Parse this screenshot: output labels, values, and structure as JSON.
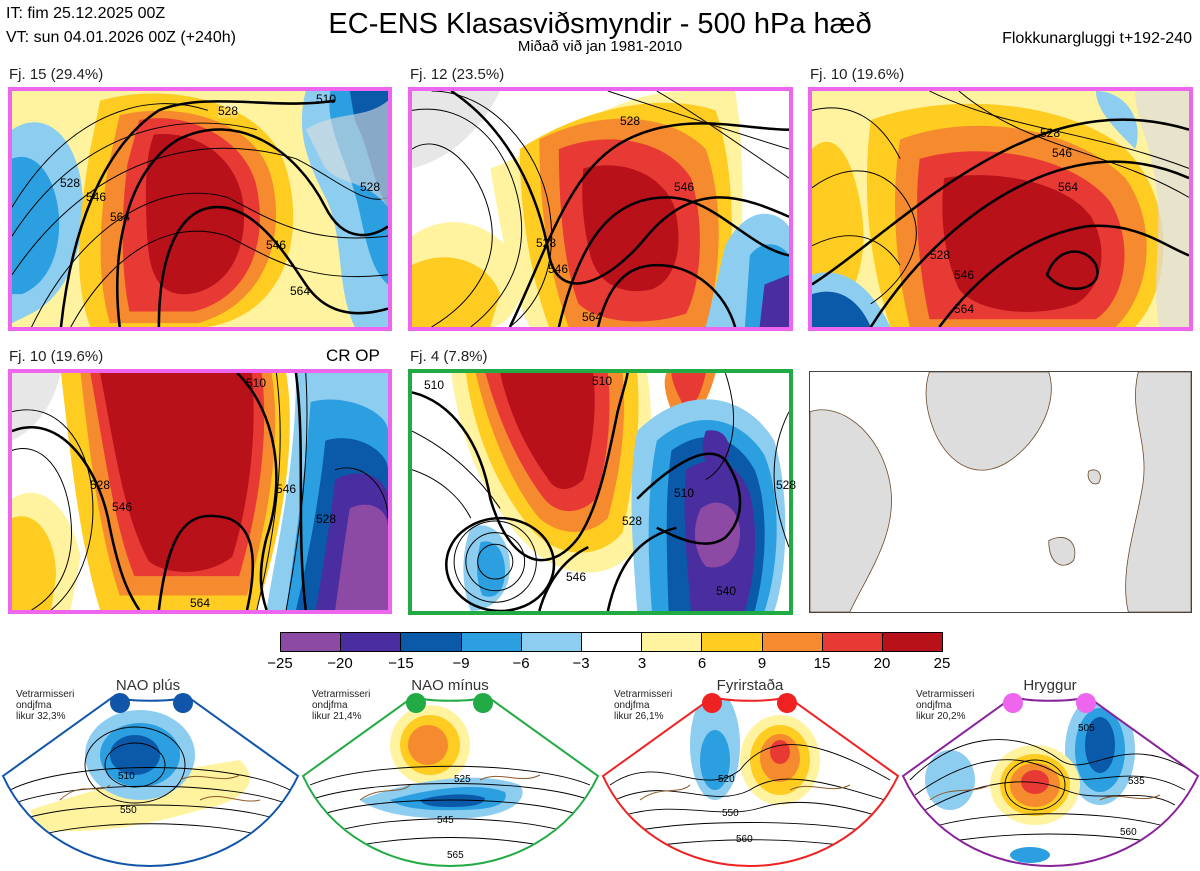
{
  "header": {
    "it_line": "IT: fim 25.12.2025 00Z",
    "vt_line": "VT: sun 04.01.2026 00Z  (+240h)",
    "title": "EC-ENS Klasasviðsmyndir - 500 hPa hæð",
    "subtitle": "Miðað við jan 1981-2010",
    "window": "Flokkunargluggi t+192-240"
  },
  "panels": [
    {
      "label": "Fj. 15 (29.4%)",
      "regime": "Hryggur",
      "frame_color": "#ee66ee",
      "contours": [
        "528",
        "546",
        "564",
        "528",
        "546",
        "564",
        "510",
        "528"
      ]
    },
    {
      "label": "Fj. 12 (23.5%)",
      "regime": "Hryggur",
      "frame_color": "#ee66ee",
      "contours": [
        "528",
        "546",
        "528",
        "546",
        "564"
      ]
    },
    {
      "label": "Fj. 10 (19.6%)",
      "regime": "Hryggur",
      "frame_color": "#ee66ee",
      "contours": [
        "528",
        "546",
        "564",
        "528",
        "546",
        "564"
      ]
    },
    {
      "label": "Fj. 10 (19.6%)",
      "regime": "Hryggur",
      "frame_color": "#ee66ee",
      "tag": "CR OP",
      "contours": [
        "510",
        "528",
        "546",
        "528",
        "546",
        "564"
      ]
    },
    {
      "label": "Fj. 4 (7.8%)",
      "regime": "NAO mínus",
      "frame_color": "#22aa44",
      "contours": [
        "510",
        "510",
        "528",
        "546",
        "510",
        "528",
        "540"
      ]
    }
  ],
  "chart_data": {
    "type": "heatmap",
    "title": "EC-ENS Klasasviðsmyndir - 500 hPa hæð",
    "subtitle": "Miðað við jan 1981-2010",
    "colorbar": {
      "ticks": [
        "−25",
        "−20",
        "−15",
        "−9",
        "−6",
        "−3",
        "3",
        "6",
        "9",
        "15",
        "20",
        "25"
      ],
      "colors": [
        "#8c4aa4",
        "#4a2d9e",
        "#0b5aaa",
        "#2b9fe0",
        "#8ccdf0",
        "#ffffff",
        "#fff3a0",
        "#ffcc22",
        "#f58a2e",
        "#e83a34",
        "#b8111a"
      ]
    },
    "clusters": [
      {
        "label": "Fj. 15 (29.4%)",
        "percent": 29.4,
        "regime": "Hryggur"
      },
      {
        "label": "Fj. 12 (23.5%)",
        "percent": 23.5,
        "regime": "Hryggur"
      },
      {
        "label": "Fj. 10 (19.6%)",
        "percent": 19.6,
        "regime": "Hryggur"
      },
      {
        "label": "Fj. 10 (19.6%)",
        "percent": 19.6,
        "regime": "Hryggur"
      },
      {
        "label": "Fj. 4 (7.8%)",
        "percent": 7.8,
        "regime": "NAO mínus"
      }
    ],
    "regimes": [
      {
        "name": "NAO plús",
        "stat": [
          "Vetrarmisseri",
          "ondjfma",
          "likur 32,3%"
        ],
        "color": "#1155aa",
        "probability": 32.3,
        "contours": [
          "510",
          "550"
        ]
      },
      {
        "name": "NAO mínus",
        "stat": [
          "Vetrarmisseri",
          "ondjfma",
          "likur 21,4%"
        ],
        "color": "#22aa44",
        "probability": 21.4,
        "contours": [
          "525",
          "545",
          "565"
        ]
      },
      {
        "name": "Fyrirstaða",
        "stat": [
          "Vetrarmisseri",
          "ondjfma",
          "likur 26,1%"
        ],
        "color": "#ee2222",
        "probability": 26.1,
        "contours": [
          "520",
          "550",
          "560"
        ]
      },
      {
        "name": "Hryggur",
        "stat": [
          "Vetrarmisseri",
          "ondjfma",
          "likur 20,2%"
        ],
        "color": "#ee66ee",
        "probability": 20.2,
        "contours": [
          "505",
          "535",
          "560"
        ]
      }
    ]
  }
}
